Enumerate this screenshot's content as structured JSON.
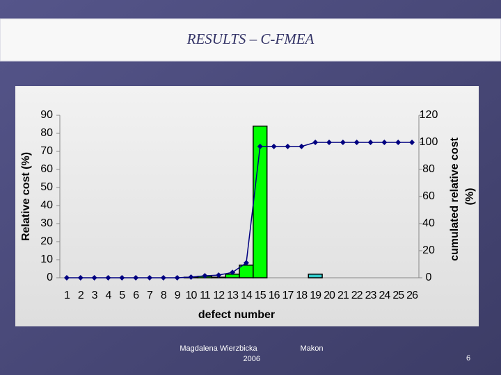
{
  "slide": {
    "title": "RESULTS – C-FMEA",
    "author": "Magdalena Wierzbicka",
    "year": "2006",
    "place": "Makon",
    "page": "6"
  },
  "chart_data": {
    "type": "bar-line",
    "xlabel": "defect number",
    "ylabel": "Relative cost (%)",
    "y2label": [
      "cumulated relative cost",
      "(%)"
    ],
    "categories": [
      1,
      2,
      3,
      4,
      5,
      6,
      7,
      8,
      9,
      10,
      11,
      12,
      13,
      14,
      15,
      16,
      17,
      18,
      19,
      20,
      21,
      22,
      23,
      24,
      25,
      26
    ],
    "series": [
      {
        "name": "Relative cost",
        "type": "bar",
        "color": "#00ff00",
        "colors": [
          "#00ff00",
          "#00ff00",
          "#00ff00",
          "#00ff00",
          "#00ff00",
          "#00ff00",
          "#00ff00",
          "#00ff00",
          "#00ff00",
          "#00ff00",
          "#00ff00",
          "#00ff00",
          "#00ff00",
          "#00ff00",
          "#00ff00",
          "#00ff00",
          "#00ff00",
          "#00ff00",
          "#33cccc",
          "#00ff00",
          "#00ff00",
          "#00ff00",
          "#00ff00",
          "#00ff00",
          "#00ff00",
          "#00ff00"
        ],
        "values": [
          0,
          0,
          0,
          0,
          0,
          0,
          0,
          0,
          0,
          0.3,
          0.8,
          0.3,
          2,
          7,
          84,
          0,
          0,
          0,
          2,
          0,
          0,
          0,
          0,
          0,
          0,
          0
        ]
      },
      {
        "name": "Cumulated relative cost",
        "type": "line",
        "axis": "y2",
        "color": "#000080",
        "values": [
          0,
          0,
          0,
          0,
          0,
          0,
          0,
          0,
          0,
          0.5,
          1.5,
          2,
          4,
          11,
          97,
          97,
          97,
          97,
          100,
          100,
          100,
          100,
          100,
          100,
          100,
          100
        ]
      }
    ],
    "ylim": [
      0,
      90
    ],
    "yticks": [
      0,
      10,
      20,
      30,
      40,
      50,
      60,
      70,
      80,
      90
    ],
    "y2lim": [
      0,
      120
    ],
    "y2ticks": [
      0,
      20,
      40,
      60,
      80,
      100,
      120
    ]
  }
}
